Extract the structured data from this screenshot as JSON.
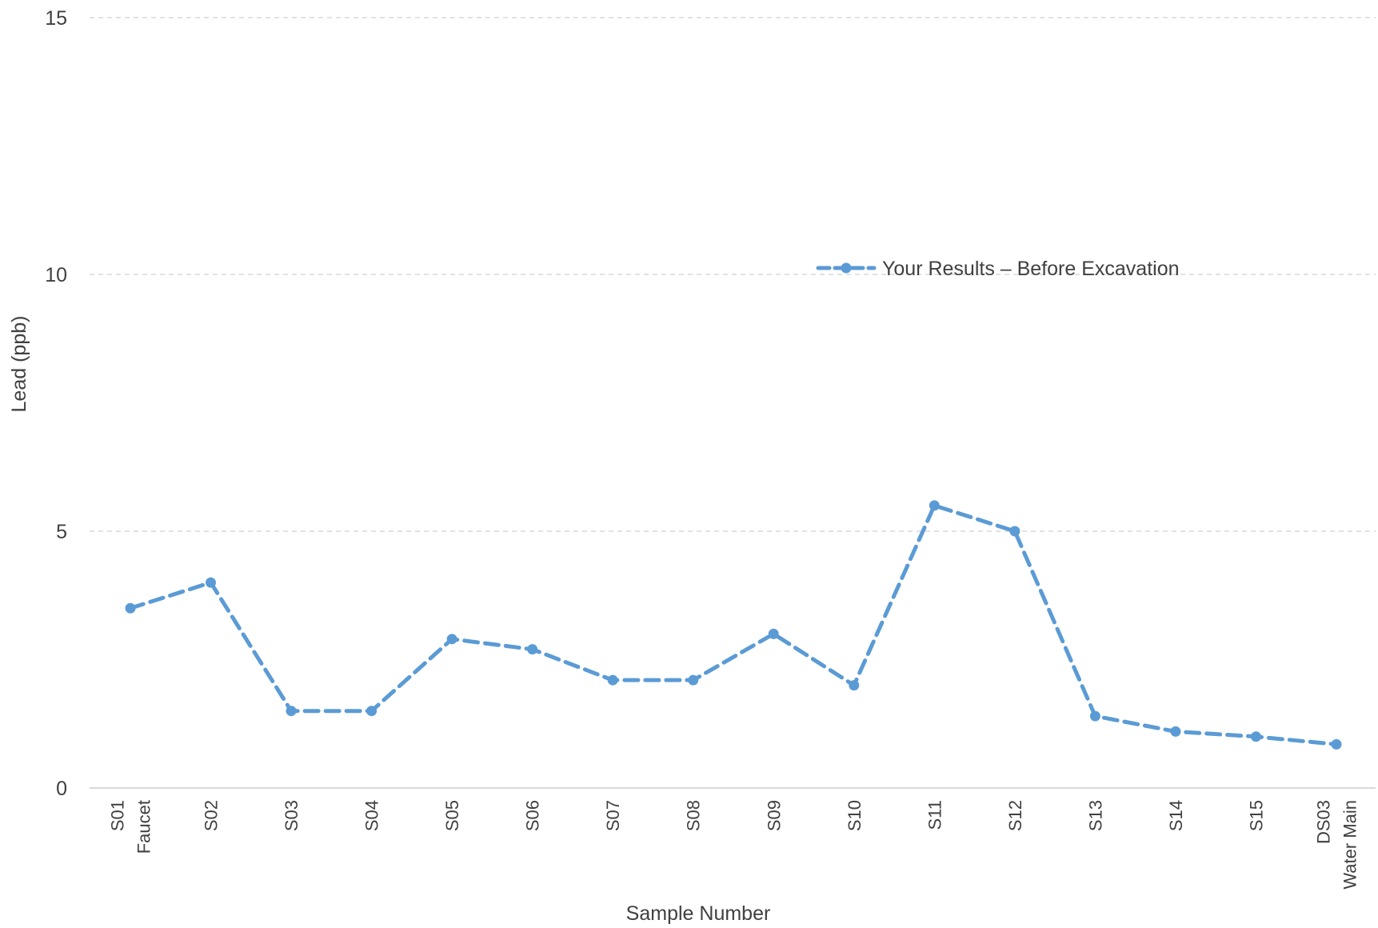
{
  "chart_data": {
    "type": "line",
    "title": "",
    "xlabel": "Sample Number",
    "ylabel": "Lead (ppb)",
    "ylim": [
      0,
      15
    ],
    "yticks": [
      0,
      5,
      10,
      15
    ],
    "grid": true,
    "legend_position": "right",
    "categories": [
      [
        "S01",
        "Faucet"
      ],
      [
        "S02"
      ],
      [
        "S03"
      ],
      [
        "S04"
      ],
      [
        "S05"
      ],
      [
        "S06"
      ],
      [
        "S07"
      ],
      [
        "S08"
      ],
      [
        "S09"
      ],
      [
        "S10"
      ],
      [
        "S11"
      ],
      [
        "S12"
      ],
      [
        "S13"
      ],
      [
        "S14"
      ],
      [
        "S15"
      ],
      [
        "DS03",
        "Water Main"
      ]
    ],
    "series": [
      {
        "name": "Your Results – Before Excavation",
        "color": "#5B9BD5",
        "line_style": "dashed",
        "marker": "circle",
        "values": [
          3.5,
          4.0,
          1.5,
          1.5,
          2.9,
          2.7,
          2.1,
          2.1,
          3.0,
          2.0,
          5.5,
          5.0,
          1.4,
          1.1,
          1.0,
          0.85
        ]
      }
    ],
    "colors": {
      "gridline": "#D9D9D9",
      "axis": "#D9D9D9",
      "text": "#404040"
    }
  }
}
